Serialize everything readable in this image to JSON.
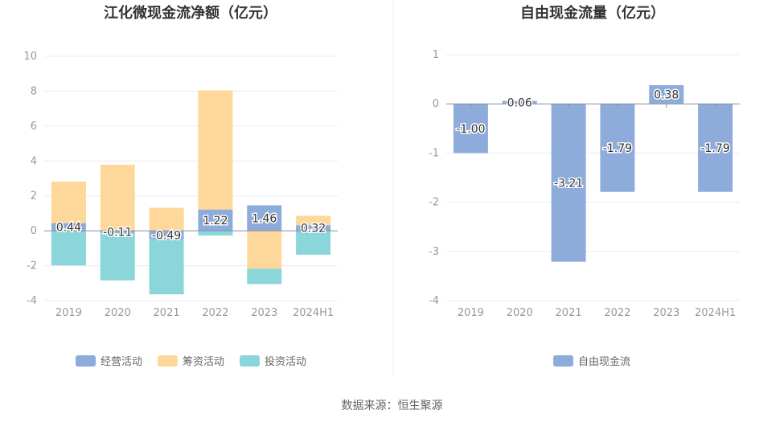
{
  "source": "数据来源：恒生聚源",
  "chart_data": [
    {
      "type": "bar",
      "stacked": true,
      "title": "江化微现金流净额（亿元）",
      "categories": [
        "2019",
        "2020",
        "2021",
        "2022",
        "2023",
        "2024H1"
      ],
      "ylim": [
        -4,
        10
      ],
      "yticks": [
        -4,
        -2,
        0,
        2,
        4,
        6,
        8,
        10
      ],
      "grid": true,
      "legend_position": "bottom",
      "series": [
        {
          "name": "经营活动",
          "color": "#8eacdb",
          "values": [
            0.44,
            -0.11,
            -0.49,
            1.22,
            1.46,
            0.32
          ],
          "show_labels": true
        },
        {
          "name": "筹资活动",
          "color": "#fed89b",
          "values": [
            2.38,
            3.79,
            1.32,
            6.83,
            -2.18,
            0.54
          ],
          "show_labels": false
        },
        {
          "name": "投资活动",
          "color": "#8ad6db",
          "values": [
            -1.98,
            -2.73,
            -3.15,
            -0.27,
            -0.87,
            -1.37
          ],
          "show_labels": false
        }
      ],
      "data_labels": [
        "0.44",
        "-0.11",
        "-0.49",
        "1.22",
        "1.46",
        "0.32"
      ]
    },
    {
      "type": "bar",
      "title": "自由现金流量（亿元）",
      "categories": [
        "2019",
        "2020",
        "2021",
        "2022",
        "2023",
        "2024H1"
      ],
      "ylim": [
        -4,
        1
      ],
      "yticks": [
        -4,
        -3,
        -2,
        -1,
        0,
        1
      ],
      "grid": true,
      "legend_position": "bottom",
      "series": [
        {
          "name": "自由现金流",
          "color": "#8eacdb",
          "values": [
            -1.0,
            0.06,
            -3.21,
            -1.79,
            0.38,
            -1.79
          ],
          "show_labels": true
        }
      ],
      "data_labels": [
        "-1.00",
        "0.06",
        "-3.21",
        "-1.79",
        "0.38",
        "-1.79"
      ]
    }
  ]
}
